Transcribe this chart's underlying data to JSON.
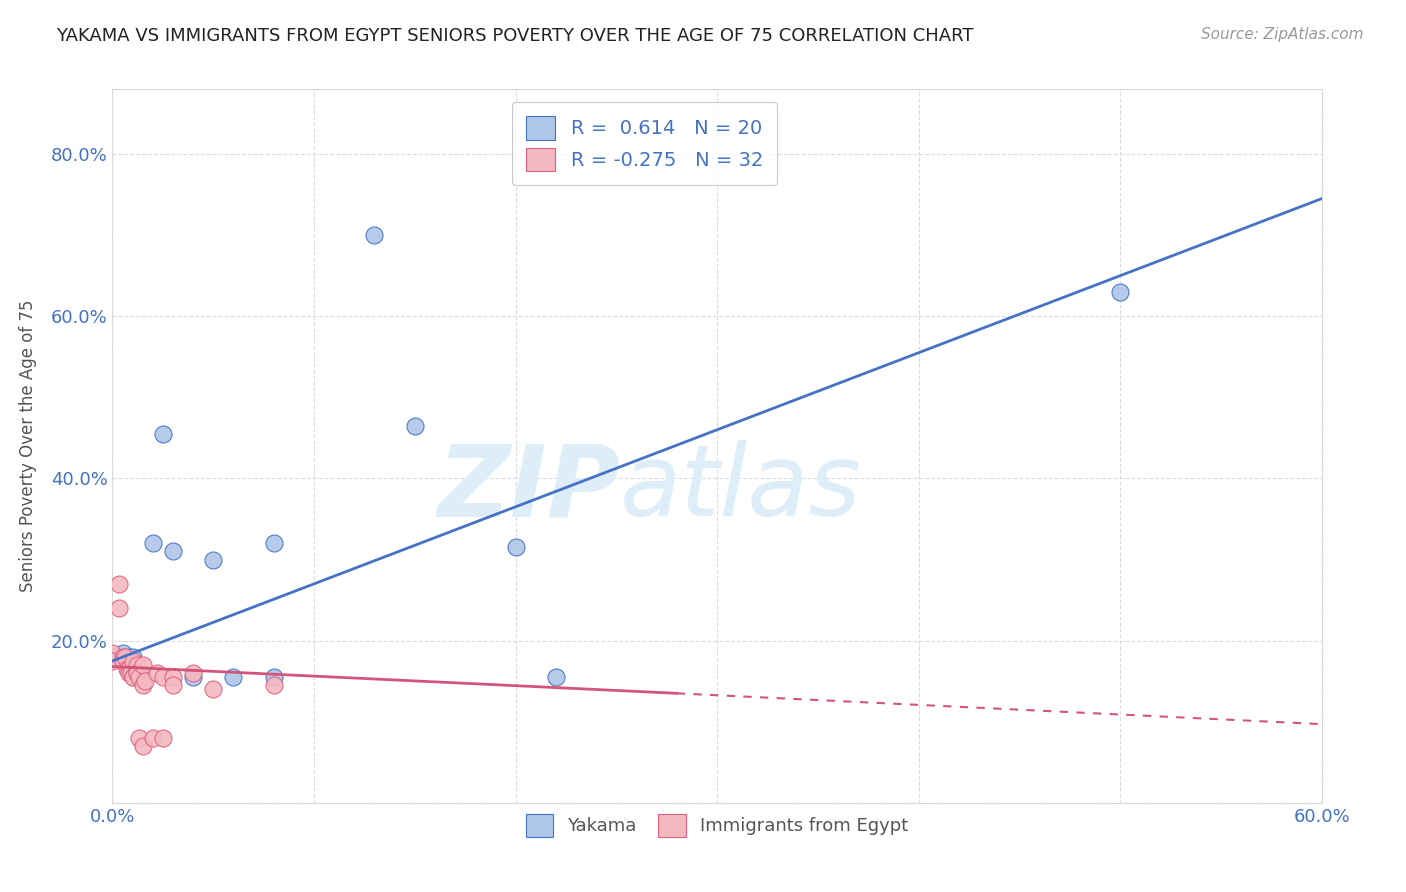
{
  "title": "YAKAMA VS IMMIGRANTS FROM EGYPT SENIORS POVERTY OVER THE AGE OF 75 CORRELATION CHART",
  "source": "Source: ZipAtlas.com",
  "ylabel": "Seniors Poverty Over the Age of 75",
  "xlim": [
    0.0,
    0.6
  ],
  "ylim": [
    0.0,
    0.88
  ],
  "xtick_positions": [
    0.0,
    0.1,
    0.2,
    0.3,
    0.4,
    0.5,
    0.6
  ],
  "xticklabels": [
    "0.0%",
    "",
    "",
    "",
    "",
    "",
    "60.0%"
  ],
  "ytick_positions": [
    0.0,
    0.2,
    0.4,
    0.6,
    0.8
  ],
  "yticklabels": [
    "",
    "20.0%",
    "40.0%",
    "60.0%",
    "80.0%"
  ],
  "legend_entries": [
    {
      "label": "R =  0.614   N = 20",
      "color": "#aec6e8"
    },
    {
      "label": "R = -0.275   N = 32",
      "color": "#f4b8c1"
    }
  ],
  "yakama_points": [
    [
      0.0,
      0.18
    ],
    [
      0.005,
      0.185
    ],
    [
      0.008,
      0.18
    ],
    [
      0.008,
      0.175
    ],
    [
      0.01,
      0.175
    ],
    [
      0.01,
      0.18
    ],
    [
      0.015,
      0.155
    ],
    [
      0.02,
      0.32
    ],
    [
      0.025,
      0.455
    ],
    [
      0.03,
      0.31
    ],
    [
      0.04,
      0.155
    ],
    [
      0.05,
      0.3
    ],
    [
      0.06,
      0.155
    ],
    [
      0.08,
      0.155
    ],
    [
      0.08,
      0.32
    ],
    [
      0.13,
      0.7
    ],
    [
      0.15,
      0.465
    ],
    [
      0.2,
      0.315
    ],
    [
      0.22,
      0.155
    ],
    [
      0.5,
      0.63
    ]
  ],
  "egypt_points": [
    [
      0.0,
      0.185
    ],
    [
      0.0,
      0.175
    ],
    [
      0.003,
      0.24
    ],
    [
      0.003,
      0.27
    ],
    [
      0.005,
      0.18
    ],
    [
      0.005,
      0.175
    ],
    [
      0.006,
      0.18
    ],
    [
      0.007,
      0.165
    ],
    [
      0.008,
      0.165
    ],
    [
      0.008,
      0.16
    ],
    [
      0.009,
      0.16
    ],
    [
      0.01,
      0.155
    ],
    [
      0.01,
      0.155
    ],
    [
      0.01,
      0.175
    ],
    [
      0.012,
      0.17
    ],
    [
      0.012,
      0.16
    ],
    [
      0.012,
      0.16
    ],
    [
      0.013,
      0.155
    ],
    [
      0.013,
      0.08
    ],
    [
      0.015,
      0.145
    ],
    [
      0.015,
      0.07
    ],
    [
      0.015,
      0.17
    ],
    [
      0.016,
      0.15
    ],
    [
      0.02,
      0.08
    ],
    [
      0.022,
      0.16
    ],
    [
      0.025,
      0.155
    ],
    [
      0.025,
      0.08
    ],
    [
      0.03,
      0.155
    ],
    [
      0.03,
      0.145
    ],
    [
      0.04,
      0.16
    ],
    [
      0.05,
      0.14
    ],
    [
      0.08,
      0.145
    ]
  ],
  "yakama_color": "#aec6e8",
  "yakama_edge_color": "#4472c4",
  "egypt_color": "#f4b8c1",
  "egypt_edge_color": "#e06080",
  "yakama_line_color": "#4472c4",
  "egypt_line_color": "#d4547a",
  "yakama_line": {
    "x0": 0.0,
    "y0": 0.175,
    "x1": 0.6,
    "y1": 0.745
  },
  "egypt_line_solid": {
    "x0": 0.0,
    "y0": 0.168,
    "x1": 0.28,
    "y1": 0.135
  },
  "egypt_line_dashed": {
    "x0": 0.28,
    "y0": 0.135,
    "x1": 0.6,
    "y1": 0.097
  },
  "watermark": "ZIPatlas",
  "watermark_color": "#ddeef8",
  "background_color": "#ffffff",
  "grid_color": "#d8d8d8",
  "tick_color": "#4472c4",
  "ylabel_color": "#555555",
  "title_color": "#222222",
  "source_color": "#999999"
}
